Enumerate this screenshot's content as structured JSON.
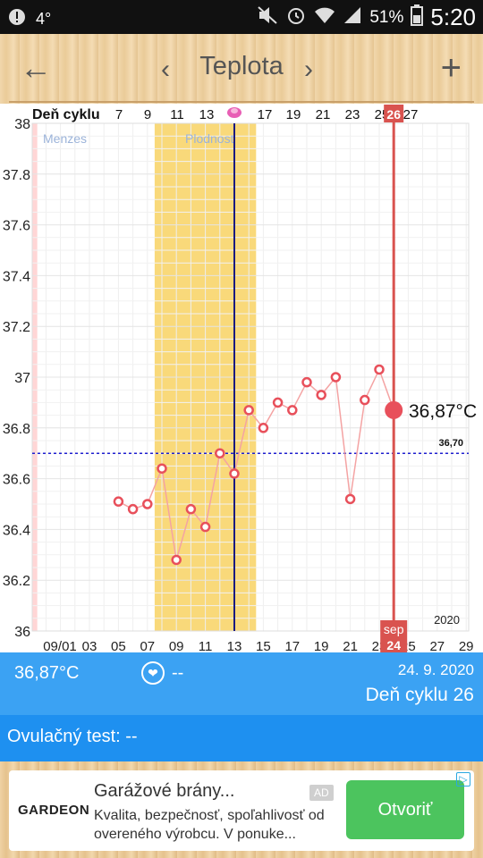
{
  "status_bar": {
    "temp": "4°",
    "battery": "51%",
    "time": "5:20",
    "icons": [
      "notification-icon",
      "mute-icon",
      "alarm-icon",
      "wifi-icon",
      "signal-icon",
      "battery-icon"
    ]
  },
  "app_bar": {
    "title": "Teplota",
    "back_icon": "←",
    "prev_icon": "‹",
    "next_icon": "›",
    "add_icon": "+"
  },
  "chart_data": {
    "type": "line",
    "ylim": [
      36,
      38
    ],
    "y_ticks": [
      "36",
      "36.2",
      "36.4",
      "36.6",
      "36.8",
      "37",
      "37.2",
      "37.4",
      "37.6",
      "37.8",
      "38"
    ],
    "cycle_label": "Deň cyklu",
    "cycle_ticks": [
      "7",
      "9",
      "11",
      "13",
      "17",
      "19",
      "21",
      "23",
      "25",
      "27"
    ],
    "date_ticks": [
      "09/01",
      "03",
      "05",
      "07",
      "09",
      "11",
      "13",
      "15",
      "17",
      "19",
      "21",
      "23",
      "25",
      "27",
      "29"
    ],
    "date_tick_days": [
      1,
      3,
      5,
      7,
      9,
      11,
      13,
      15,
      17,
      19,
      21,
      23,
      25,
      27,
      29
    ],
    "year_label": "2020",
    "menses_label": "Menzes",
    "menses_days": [
      31,
      35.5
    ],
    "fertile_label": "Plodnosť",
    "fertile_days": [
      7.5,
      14.5
    ],
    "ovulation_day": 13,
    "coverline": 36.7,
    "coverline_label": "36,70",
    "series": [
      {
        "points": [
          [
            5,
            36.51
          ],
          [
            6,
            36.48
          ],
          [
            7,
            36.5
          ],
          [
            8,
            36.64
          ],
          [
            9,
            36.28
          ],
          [
            10,
            36.48
          ],
          [
            11,
            36.41
          ],
          [
            12,
            36.7
          ],
          [
            13,
            36.62
          ],
          [
            14,
            36.87
          ],
          [
            15,
            36.8
          ],
          [
            16,
            36.9
          ],
          [
            17,
            36.87
          ],
          [
            18,
            36.98
          ],
          [
            19,
            36.93
          ],
          [
            20,
            37.0
          ],
          [
            21,
            36.52
          ],
          [
            22,
            36.91
          ],
          [
            23,
            37.03
          ],
          [
            24,
            36.87
          ]
        ]
      }
    ],
    "selected": {
      "day": 24,
      "value": 36.87,
      "label": "36,87°C",
      "cycle_day": "26",
      "month": "sep",
      "date_day": "24"
    },
    "colors": {
      "menses": "#ffd6d6",
      "fertile": "#f9d97a",
      "line": "#f4a3a3",
      "point": "#e8505b",
      "selected": "#d9534f",
      "coverline": "#1f1fd0",
      "ovulation": "#1a1a80"
    }
  },
  "info": {
    "temp": "36,87°C",
    "heart_value": "--",
    "date": "24. 9. 2020",
    "cycle_day": "Deň cyklu 26"
  },
  "ovulation_test": {
    "label": "Ovulačný test: --"
  },
  "ad": {
    "logo": "GARDEON",
    "title": "Garážové brány...",
    "badge": "AD",
    "description": "Kvalita, bezpečnosť, spoľahlivosť od overeného výrobcu. V ponuke...",
    "cta": "Otvoriť"
  }
}
